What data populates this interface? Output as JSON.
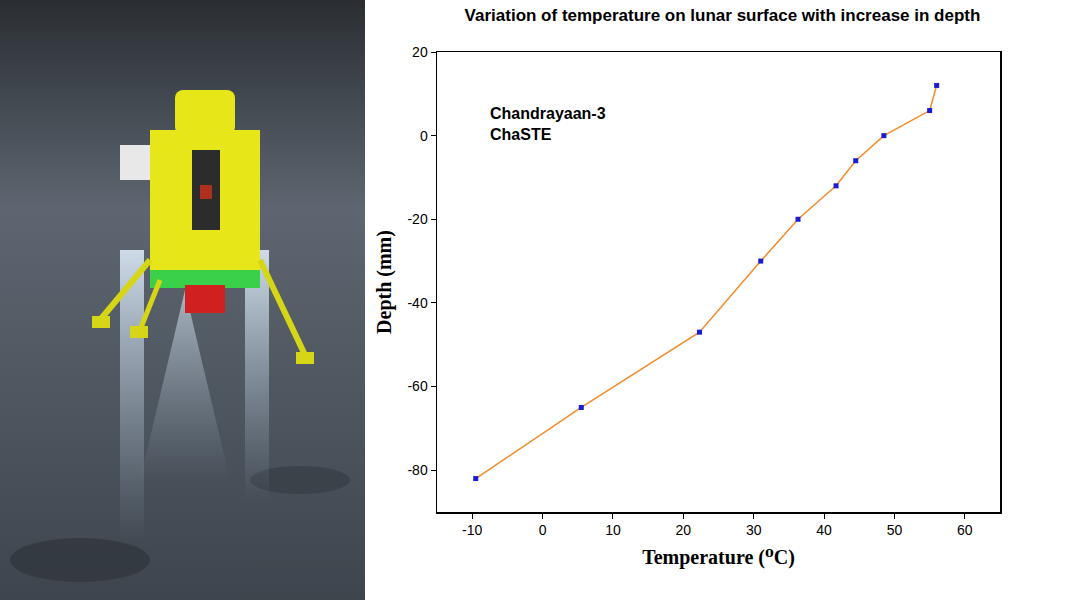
{
  "chart_data": {
    "type": "line",
    "title": "Variation of temperature on lunar surface with increase in depth",
    "xlabel": "Temperature (⁰C)",
    "ylabel": "Depth (mm)",
    "annotations": [
      "Chandrayaan-3",
      "ChaSTE"
    ],
    "x": [
      -9.5,
      5.5,
      22.3,
      31.0,
      36.3,
      41.7,
      44.5,
      48.5,
      55.0,
      56.0
    ],
    "values": [
      -82,
      -65,
      -47,
      -30,
      -20,
      -12,
      -6,
      0,
      6,
      12
    ],
    "color": "#f28c28",
    "marker": "square",
    "xlim": [
      -15,
      65
    ],
    "ylim": [
      -90,
      20
    ],
    "xticks": [
      -10,
      0,
      10,
      20,
      30,
      40,
      50,
      60
    ],
    "yticks": [
      -80,
      -60,
      -40,
      -20,
      0,
      20
    ],
    "grid": false
  }
}
